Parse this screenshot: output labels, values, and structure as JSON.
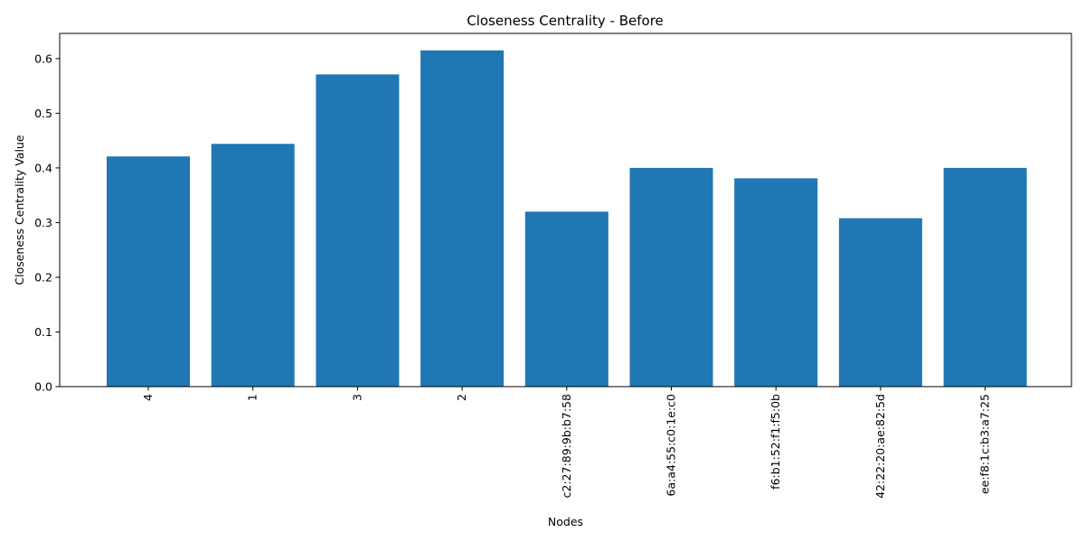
{
  "chart_data": {
    "type": "bar",
    "title": "Closeness Centrality - Before",
    "xlabel": "Nodes",
    "ylabel": "Closeness Centrality Value",
    "categories": [
      "4",
      "1",
      "3",
      "2",
      "c2:27:89:9b:b7:58",
      "6a:a4:55:c0:1e:c0",
      "f6:b1:52:f1:f5:0b",
      "42:22:20:ae:82:5d",
      "ee:f8:1c:b3:a7:25"
    ],
    "values": [
      0.421,
      0.444,
      0.571,
      0.615,
      0.32,
      0.4,
      0.381,
      0.308,
      0.4
    ],
    "ylim": [
      0,
      0.646
    ],
    "yticks": [
      0.0,
      0.1,
      0.2,
      0.3,
      0.4,
      0.5,
      0.6
    ],
    "ytick_labels": [
      "0.0",
      "0.1",
      "0.2",
      "0.3",
      "0.4",
      "0.5",
      "0.6"
    ],
    "grid": false,
    "bar_color": "#1f77b4"
  }
}
